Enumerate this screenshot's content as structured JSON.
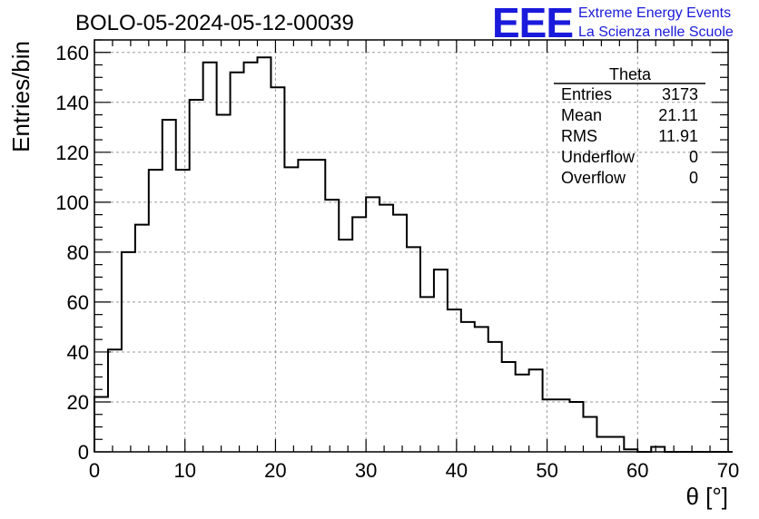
{
  "chart_data": {
    "type": "histogram",
    "title": "BOLO-05-2024-05-12-00039",
    "xlabel": "θ [°]",
    "ylabel": "Entries/bin",
    "xlim": [
      0,
      70
    ],
    "ylim": [
      0,
      165
    ],
    "xticks": [
      0,
      10,
      20,
      30,
      40,
      50,
      60,
      70
    ],
    "yticks": [
      0,
      20,
      40,
      60,
      80,
      100,
      120,
      140,
      160
    ],
    "grid": true,
    "bin_width": 1.5,
    "bin_start": 0,
    "values": [
      22,
      41,
      80,
      91,
      113,
      133,
      113,
      141,
      156,
      135,
      152,
      156,
      158,
      146,
      114,
      117,
      117,
      101,
      85,
      94,
      102,
      99,
      95,
      82,
      62,
      73,
      57,
      52,
      50,
      44,
      36,
      31,
      33,
      21,
      21,
      20,
      14,
      6,
      6,
      1,
      0,
      2,
      0,
      0,
      0,
      0,
      0
    ],
    "stats": {
      "name": "Theta",
      "rows": [
        {
          "label": "Entries",
          "value": "3173"
        },
        {
          "label": "Mean",
          "value": "21.11"
        },
        {
          "label": "RMS",
          "value": "11.91"
        },
        {
          "label": "Underflow",
          "value": "0"
        },
        {
          "label": "Overflow",
          "value": "0"
        }
      ]
    }
  },
  "logo": {
    "mark": "EEE",
    "line1": "Extreme Energy Events",
    "line2": "La Scienza nelle Scuole"
  }
}
